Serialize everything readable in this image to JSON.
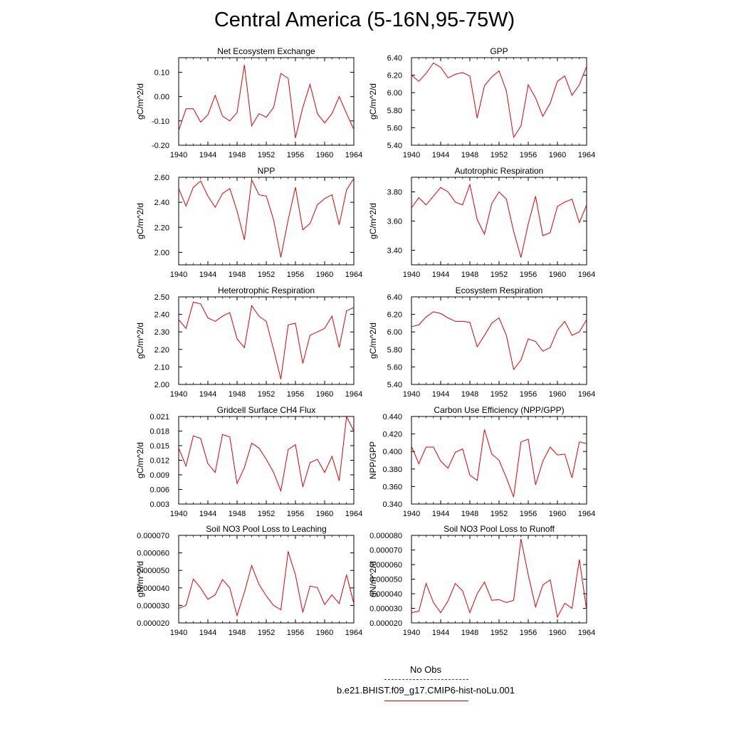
{
  "title": "Central America (5-16N,95-75W)",
  "legend": [
    {
      "label": "No Obs",
      "color": "#4040c0",
      "style": "dashed"
    },
    {
      "label": "b.e21.BHIST.f09_g17.CMIP6-hist-noLu.001",
      "color": "#e00000",
      "style": "solid"
    }
  ],
  "chart_data": [
    {
      "type": "line",
      "title": "Net Ecosystem Exchange",
      "ylabel": "gC/m^2/d",
      "xlim": [
        1940,
        1964
      ],
      "ylim": [
        -0.2,
        0.16
      ],
      "xticks": [
        "1940",
        "1944",
        "1948",
        "1952",
        "1956",
        "1960",
        "1964"
      ],
      "yticks": [
        {
          "v": -0.2,
          "label": "-0.20"
        },
        {
          "v": -0.1,
          "label": "-0.10"
        },
        {
          "v": 0.0,
          "label": "0.00"
        },
        {
          "v": 0.1,
          "label": "0.10"
        }
      ],
      "x": [
        1940,
        1941,
        1942,
        1943,
        1944,
        1945,
        1946,
        1947,
        1948,
        1949,
        1950,
        1951,
        1952,
        1953,
        1954,
        1955,
        1956,
        1957,
        1958,
        1959,
        1960,
        1961,
        1962,
        1963,
        1964
      ],
      "series": [
        {
          "color": "#e00000",
          "values": [
            -0.14,
            -0.05,
            -0.05,
            -0.105,
            -0.075,
            0.005,
            -0.08,
            -0.1,
            -0.065,
            0.13,
            -0.12,
            -0.07,
            -0.085,
            -0.045,
            0.095,
            0.075,
            -0.17,
            -0.045,
            0.05,
            -0.07,
            -0.108,
            -0.07,
            0.0,
            -0.07,
            -0.135
          ]
        }
      ]
    },
    {
      "type": "line",
      "title": "GPP",
      "ylabel": "gC/m^2/d",
      "xlim": [
        1940,
        1964
      ],
      "ylim": [
        5.4,
        6.4
      ],
      "xticks": [
        "1940",
        "1944",
        "1948",
        "1952",
        "1956",
        "1960",
        "1964"
      ],
      "yticks": [
        {
          "v": 5.4,
          "label": "5.40"
        },
        {
          "v": 5.6,
          "label": "5.60"
        },
        {
          "v": 5.8,
          "label": "5.80"
        },
        {
          "v": 6.0,
          "label": "6.00"
        },
        {
          "v": 6.2,
          "label": "6.20"
        },
        {
          "v": 6.4,
          "label": "6.40"
        }
      ],
      "x": [
        1940,
        1941,
        1942,
        1943,
        1944,
        1945,
        1946,
        1947,
        1948,
        1949,
        1950,
        1951,
        1952,
        1953,
        1954,
        1955,
        1956,
        1957,
        1958,
        1959,
        1960,
        1961,
        1962,
        1963,
        1964
      ],
      "series": [
        {
          "color": "#e00000",
          "values": [
            6.2,
            6.13,
            6.22,
            6.34,
            6.29,
            6.17,
            6.21,
            6.23,
            6.19,
            5.71,
            6.08,
            6.18,
            6.25,
            6.02,
            5.49,
            5.62,
            6.09,
            5.94,
            5.73,
            5.88,
            6.13,
            6.19,
            5.97,
            6.09,
            6.3
          ]
        }
      ]
    },
    {
      "type": "line",
      "title": "NPP",
      "ylabel": "gC/m^2/d",
      "xlim": [
        1940,
        1964
      ],
      "ylim": [
        1.9,
        2.6
      ],
      "xticks": [
        "1940",
        "1944",
        "1948",
        "1952",
        "1956",
        "1960",
        "1964"
      ],
      "yticks": [
        {
          "v": 2.0,
          "label": "2.00"
        },
        {
          "v": 2.2,
          "label": "2.20"
        },
        {
          "v": 2.4,
          "label": "2.40"
        },
        {
          "v": 2.6,
          "label": "2.60"
        }
      ],
      "x": [
        1940,
        1941,
        1942,
        1943,
        1944,
        1945,
        1946,
        1947,
        1948,
        1949,
        1950,
        1951,
        1952,
        1953,
        1954,
        1955,
        1956,
        1957,
        1958,
        1959,
        1960,
        1961,
        1962,
        1963,
        1964
      ],
      "series": [
        {
          "color": "#e00000",
          "values": [
            2.51,
            2.37,
            2.52,
            2.57,
            2.45,
            2.36,
            2.47,
            2.51,
            2.33,
            2.1,
            2.58,
            2.46,
            2.45,
            2.26,
            1.96,
            2.26,
            2.52,
            2.18,
            2.23,
            2.38,
            2.43,
            2.46,
            2.22,
            2.5,
            2.59
          ]
        }
      ]
    },
    {
      "type": "line",
      "title": "Autotrophic Respiration",
      "ylabel": "gC/m^2/d",
      "xlim": [
        1940,
        1964
      ],
      "ylim": [
        3.3,
        3.9
      ],
      "xticks": [
        "1940",
        "1944",
        "1948",
        "1952",
        "1956",
        "1960",
        "1964"
      ],
      "yticks": [
        {
          "v": 3.4,
          "label": "3.40"
        },
        {
          "v": 3.6,
          "label": "3.60"
        },
        {
          "v": 3.8,
          "label": "3.80"
        }
      ],
      "x": [
        1940,
        1941,
        1942,
        1943,
        1944,
        1945,
        1946,
        1947,
        1948,
        1949,
        1950,
        1951,
        1952,
        1953,
        1954,
        1955,
        1956,
        1957,
        1958,
        1959,
        1960,
        1961,
        1962,
        1963,
        1964
      ],
      "series": [
        {
          "color": "#e00000",
          "values": [
            3.69,
            3.76,
            3.71,
            3.77,
            3.83,
            3.8,
            3.73,
            3.71,
            3.85,
            3.61,
            3.51,
            3.72,
            3.8,
            3.75,
            3.53,
            3.35,
            3.58,
            3.77,
            3.5,
            3.52,
            3.7,
            3.73,
            3.75,
            3.59,
            3.71
          ]
        }
      ]
    },
    {
      "type": "line",
      "title": "Heterotrophic Respiration",
      "ylabel": "gC/m^2/d",
      "xlim": [
        1940,
        1964
      ],
      "ylim": [
        2.0,
        2.5
      ],
      "xticks": [
        "1940",
        "1944",
        "1948",
        "1952",
        "1956",
        "1960",
        "1964"
      ],
      "yticks": [
        {
          "v": 2.0,
          "label": "2.00"
        },
        {
          "v": 2.1,
          "label": "2.10"
        },
        {
          "v": 2.2,
          "label": "2.20"
        },
        {
          "v": 2.3,
          "label": "2.30"
        },
        {
          "v": 2.4,
          "label": "2.40"
        },
        {
          "v": 2.5,
          "label": "2.50"
        }
      ],
      "x": [
        1940,
        1941,
        1942,
        1943,
        1944,
        1945,
        1946,
        1947,
        1948,
        1949,
        1950,
        1951,
        1952,
        1953,
        1954,
        1955,
        1956,
        1957,
        1958,
        1959,
        1960,
        1961,
        1962,
        1963,
        1964
      ],
      "series": [
        {
          "color": "#e00000",
          "values": [
            2.37,
            2.32,
            2.47,
            2.46,
            2.38,
            2.36,
            2.39,
            2.41,
            2.26,
            2.21,
            2.45,
            2.39,
            2.36,
            2.2,
            2.03,
            2.34,
            2.35,
            2.12,
            2.28,
            2.3,
            2.32,
            2.39,
            2.21,
            2.42,
            2.44
          ]
        }
      ]
    },
    {
      "type": "line",
      "title": "Ecosystem Respiration",
      "ylabel": "gC/m^2/d",
      "xlim": [
        1940,
        1964
      ],
      "ylim": [
        5.4,
        6.4
      ],
      "xticks": [
        "1940",
        "1944",
        "1948",
        "1952",
        "1956",
        "1960",
        "1964"
      ],
      "yticks": [
        {
          "v": 5.4,
          "label": "5.40"
        },
        {
          "v": 5.6,
          "label": "5.60"
        },
        {
          "v": 5.8,
          "label": "5.80"
        },
        {
          "v": 6.0,
          "label": "6.00"
        },
        {
          "v": 6.2,
          "label": "6.20"
        },
        {
          "v": 6.4,
          "label": "6.40"
        }
      ],
      "x": [
        1940,
        1941,
        1942,
        1943,
        1944,
        1945,
        1946,
        1947,
        1948,
        1949,
        1950,
        1951,
        1952,
        1953,
        1954,
        1955,
        1956,
        1957,
        1958,
        1959,
        1960,
        1961,
        1962,
        1963,
        1964
      ],
      "series": [
        {
          "color": "#e00000",
          "values": [
            6.06,
            6.08,
            6.17,
            6.23,
            6.21,
            6.16,
            6.12,
            6.12,
            6.11,
            5.83,
            5.96,
            6.1,
            6.16,
            5.96,
            5.57,
            5.68,
            5.92,
            5.89,
            5.78,
            5.82,
            6.02,
            6.12,
            5.96,
            6.0,
            6.14
          ]
        }
      ]
    },
    {
      "type": "line",
      "title": "Gridcell Surface CH4 Flux",
      "ylabel": "gC/m^2/d",
      "xlim": [
        1940,
        1964
      ],
      "ylim": [
        0.003,
        0.021
      ],
      "xticks": [
        "1940",
        "1944",
        "1948",
        "1952",
        "1956",
        "1960",
        "1964"
      ],
      "yticks": [
        {
          "v": 0.003,
          "label": "0.003"
        },
        {
          "v": 0.006,
          "label": "0.006"
        },
        {
          "v": 0.009,
          "label": "0.009"
        },
        {
          "v": 0.012,
          "label": "0.012"
        },
        {
          "v": 0.015,
          "label": "0.015"
        },
        {
          "v": 0.018,
          "label": "0.018"
        },
        {
          "v": 0.021,
          "label": "0.021"
        }
      ],
      "x": [
        1940,
        1941,
        1942,
        1943,
        1944,
        1945,
        1946,
        1947,
        1948,
        1949,
        1950,
        1951,
        1952,
        1953,
        1954,
        1955,
        1956,
        1957,
        1958,
        1959,
        1960,
        1961,
        1962,
        1963,
        1964
      ],
      "series": [
        {
          "color": "#e00000",
          "values": [
            0.0145,
            0.0108,
            0.017,
            0.0165,
            0.0113,
            0.0095,
            0.0173,
            0.0168,
            0.0072,
            0.0105,
            0.0155,
            0.0145,
            0.0122,
            0.0095,
            0.0057,
            0.0142,
            0.0152,
            0.0065,
            0.0115,
            0.0122,
            0.0095,
            0.0128,
            0.0078,
            0.021,
            0.018
          ]
        }
      ]
    },
    {
      "type": "line",
      "title": "Carbon Use Efficiency (NPP/GPP)",
      "ylabel": "NPP/GPP",
      "xlim": [
        1940,
        1964
      ],
      "ylim": [
        0.34,
        0.44
      ],
      "xticks": [
        "1940",
        "1944",
        "1948",
        "1952",
        "1956",
        "1960",
        "1964"
      ],
      "yticks": [
        {
          "v": 0.34,
          "label": "0.340"
        },
        {
          "v": 0.36,
          "label": "0.360"
        },
        {
          "v": 0.38,
          "label": "0.380"
        },
        {
          "v": 0.4,
          "label": "0.400"
        },
        {
          "v": 0.42,
          "label": "0.420"
        },
        {
          "v": 0.44,
          "label": "0.440"
        }
      ],
      "x": [
        1940,
        1941,
        1942,
        1943,
        1944,
        1945,
        1946,
        1947,
        1948,
        1949,
        1950,
        1951,
        1952,
        1953,
        1954,
        1955,
        1956,
        1957,
        1958,
        1959,
        1960,
        1961,
        1962,
        1963,
        1964
      ],
      "series": [
        {
          "color": "#e00000",
          "values": [
            0.406,
            0.386,
            0.405,
            0.405,
            0.389,
            0.381,
            0.399,
            0.403,
            0.373,
            0.367,
            0.425,
            0.397,
            0.39,
            0.37,
            0.348,
            0.411,
            0.414,
            0.362,
            0.389,
            0.405,
            0.396,
            0.397,
            0.37,
            0.411,
            0.409
          ]
        }
      ]
    },
    {
      "type": "line",
      "title": "Soil NO3 Pool Loss to Leaching",
      "ylabel": "gN/m^2/d",
      "xlim": [
        1940,
        1964
      ],
      "ylim": [
        2e-05,
        7e-05
      ],
      "xticks": [
        "1940",
        "1944",
        "1948",
        "1952",
        "1956",
        "1960",
        "1964"
      ],
      "yticks": [
        {
          "v": 2e-05,
          "label": "0.000020"
        },
        {
          "v": 3e-05,
          "label": "0.000030"
        },
        {
          "v": 4e-05,
          "label": "0.000040"
        },
        {
          "v": 5e-05,
          "label": "0.000050"
        },
        {
          "v": 6e-05,
          "label": "0.000060"
        },
        {
          "v": 7e-05,
          "label": "0.000070"
        }
      ],
      "x": [
        1940,
        1941,
        1942,
        1943,
        1944,
        1945,
        1946,
        1947,
        1948,
        1949,
        1950,
        1951,
        1952,
        1953,
        1954,
        1955,
        1956,
        1957,
        1958,
        1959,
        1960,
        1961,
        1962,
        1963,
        1964
      ],
      "series": [
        {
          "color": "#e00000",
          "values": [
            2.83e-05,
            3e-05,
            4.5e-05,
            4e-05,
            3.35e-05,
            3.6e-05,
            4.48e-05,
            4e-05,
            2.42e-05,
            3.75e-05,
            5.28e-05,
            4.2e-05,
            3.55e-05,
            3e-05,
            2.75e-05,
            6.08e-05,
            4.75e-05,
            2.6e-05,
            4.1e-05,
            4.02e-05,
            3.05e-05,
            3.6e-05,
            3.1e-05,
            4.75e-05,
            3.1e-05
          ]
        }
      ]
    },
    {
      "type": "line",
      "title": "Soil NO3 Pool Loss to Runoff",
      "ylabel": "gN/m^2/d",
      "xlim": [
        1940,
        1964
      ],
      "ylim": [
        2e-05,
        8e-05
      ],
      "xticks": [
        "1940",
        "1944",
        "1948",
        "1952",
        "1956",
        "1960",
        "1964"
      ],
      "yticks": [
        {
          "v": 2e-05,
          "label": "0.000020"
        },
        {
          "v": 3e-05,
          "label": "0.000030"
        },
        {
          "v": 4e-05,
          "label": "0.000040"
        },
        {
          "v": 5e-05,
          "label": "0.000050"
        },
        {
          "v": 6e-05,
          "label": "0.000060"
        },
        {
          "v": 7e-05,
          "label": "0.000070"
        },
        {
          "v": 8e-05,
          "label": "0.000080"
        }
      ],
      "x": [
        1940,
        1941,
        1942,
        1943,
        1944,
        1945,
        1946,
        1947,
        1948,
        1949,
        1950,
        1951,
        1952,
        1953,
        1954,
        1955,
        1956,
        1957,
        1958,
        1959,
        1960,
        1961,
        1962,
        1963,
        1964
      ],
      "series": [
        {
          "color": "#e00000",
          "values": [
            2.7e-05,
            2.8e-05,
            4.7e-05,
            3.4e-05,
            2.7e-05,
            3.5e-05,
            4.7e-05,
            4.2e-05,
            2.7e-05,
            4e-05,
            4.8e-05,
            3.55e-05,
            3.6e-05,
            3.4e-05,
            3.55e-05,
            7.75e-05,
            5.3e-05,
            3.1e-05,
            4.6e-05,
            4.95e-05,
            2.4e-05,
            3.35e-05,
            3e-05,
            6.35e-05,
            2.9e-05
          ]
        }
      ]
    }
  ]
}
